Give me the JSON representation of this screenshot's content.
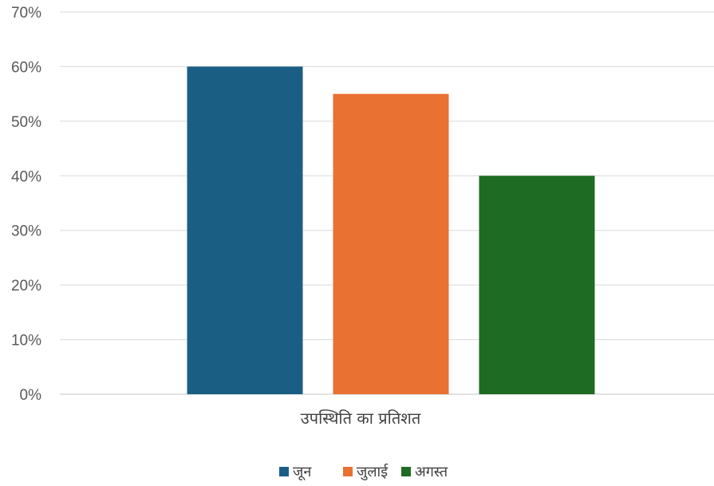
{
  "chart_data": {
    "type": "bar",
    "categories": [
      "उपस्थिति का प्रतिशत"
    ],
    "series": [
      {
        "name": "जून",
        "values": [
          60
        ],
        "color": "#1a5e84"
      },
      {
        "name": "जुलाई",
        "values": [
          55
        ],
        "color": "#e97132"
      },
      {
        "name": "अगस्त",
        "values": [
          40
        ],
        "color": "#1e6b24"
      }
    ],
    "ylim": [
      0,
      70
    ],
    "y_ticks": [
      "0%",
      "10%",
      "20%",
      "30%",
      "40%",
      "50%",
      "60%",
      "70%"
    ],
    "value_format": "percent",
    "grid": true,
    "legend_position": "bottom",
    "title": "",
    "xlabel": "",
    "ylabel": ""
  }
}
